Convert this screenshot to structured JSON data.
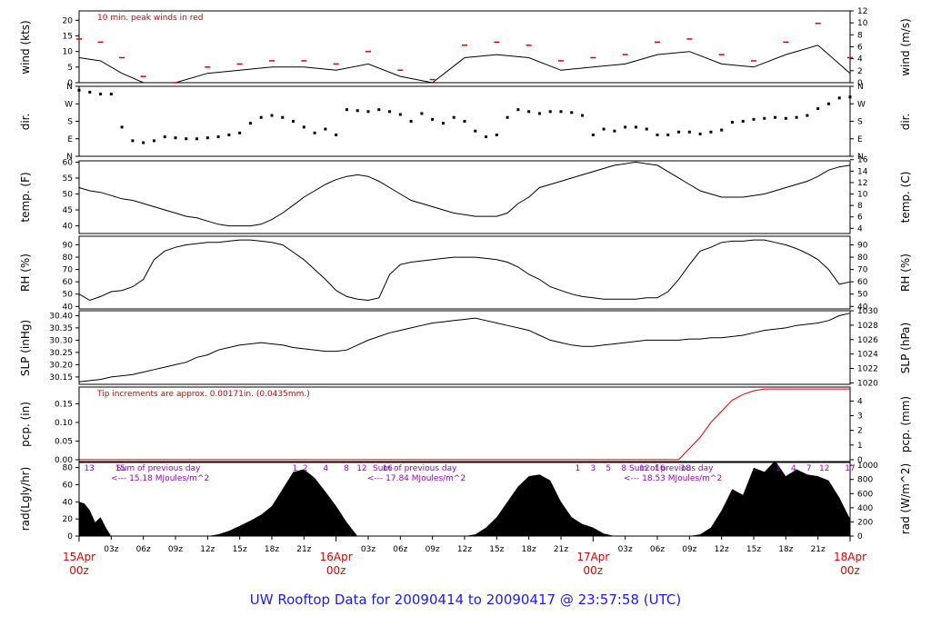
{
  "footer": "UW Rooftop Data for 20090414  to  20090417 @ 23:57:58  (UTC)",
  "colors": {
    "line": "#000000",
    "peak": "#e00000",
    "precip": "#e00000",
    "day_label": "#e00000",
    "rad_note": "#9900cc",
    "footer": "#1a1aff"
  },
  "x_axis": {
    "hour_ticks": [
      "03z",
      "06z",
      "09z",
      "12z",
      "15z",
      "18z",
      "21z",
      "03z",
      "06z",
      "09z",
      "12z",
      "15z",
      "18z",
      "21z",
      "03z",
      "06z",
      "09z",
      "12z",
      "15z",
      "18z",
      "21z"
    ],
    "day_labels": [
      {
        "day": "15Apr",
        "time": "00z"
      },
      {
        "day": "16Apr",
        "time": "00z"
      },
      {
        "day": "17Apr",
        "time": "00z"
      },
      {
        "day": "18Apr",
        "time": "00z"
      }
    ]
  },
  "chart_data": [
    {
      "type": "line",
      "ylabel": "wind (kts)",
      "ylabel_right": "wind (m/s)",
      "ylim": [
        0,
        23
      ],
      "yticks": [
        0,
        5,
        10,
        15,
        20
      ],
      "right_ylim": [
        0,
        12
      ],
      "right_yticks": [
        0,
        2,
        4,
        6,
        8,
        10,
        12
      ],
      "annotation": "10 min. peak winds in red",
      "x": [
        0,
        2,
        4,
        6,
        9,
        12,
        15,
        18,
        21,
        24,
        27,
        30,
        33,
        36,
        39,
        42,
        45,
        48,
        51,
        54,
        57,
        60,
        63,
        66,
        69,
        72
      ],
      "series": [
        {
          "values": [
            8,
            7,
            3,
            0,
            0,
            3,
            4,
            5,
            5,
            4,
            6,
            2,
            0,
            8,
            9,
            8,
            4,
            5,
            6,
            9,
            10,
            6,
            5,
            9,
            12,
            3
          ]
        },
        {
          "values": [
            14,
            13,
            8,
            2,
            0,
            5,
            6,
            7,
            7,
            6,
            10,
            4,
            1,
            12,
            13,
            12,
            7,
            8,
            9,
            13,
            14,
            9,
            7,
            13,
            19,
            8
          ]
        }
      ]
    },
    {
      "type": "scatter",
      "ylabel": "dir.",
      "ylabel_right": "dir.",
      "yticks": [
        "N",
        "E",
        "S",
        "W",
        "N"
      ],
      "x": [
        0,
        1,
        2,
        3,
        4,
        5,
        6,
        7,
        8,
        9,
        10,
        11,
        12,
        13,
        14,
        15,
        16,
        17,
        18,
        19,
        20,
        21,
        22,
        23,
        24,
        25,
        26,
        27,
        28,
        29,
        30,
        31,
        32,
        33,
        34,
        35,
        36,
        37,
        38,
        39,
        40,
        41,
        42,
        43,
        44,
        45,
        46,
        47,
        48,
        49,
        50,
        51,
        52,
        53,
        54,
        55,
        56,
        57,
        58,
        59,
        60,
        61,
        62,
        63,
        64,
        65,
        66,
        67,
        68,
        69,
        70,
        71,
        72
      ],
      "values": [
        340,
        330,
        320,
        320,
        150,
        80,
        70,
        80,
        100,
        95,
        90,
        90,
        95,
        100,
        110,
        120,
        170,
        200,
        210,
        200,
        180,
        150,
        120,
        140,
        110,
        240,
        235,
        230,
        240,
        230,
        215,
        180,
        220,
        190,
        170,
        200,
        180,
        130,
        100,
        110,
        200,
        240,
        230,
        220,
        230,
        230,
        225,
        210,
        110,
        140,
        130,
        150,
        150,
        140,
        110,
        110,
        125,
        125,
        115,
        125,
        135,
        175,
        180,
        190,
        195,
        200,
        195,
        200,
        210,
        245,
        270,
        300,
        305
      ]
    },
    {
      "type": "line",
      "ylabel": "temp. (F)",
      "ylabel_right": "temp. (C)",
      "ylim": [
        37.6,
        60.4
      ],
      "yticks": [
        40,
        45,
        50,
        55,
        60
      ],
      "right_ylim": [
        3.1,
        15.8
      ],
      "right_yticks": [
        4,
        6,
        8,
        10,
        12,
        14,
        16
      ],
      "x": [
        0,
        1,
        2,
        3,
        4,
        5,
        6,
        7,
        8,
        9,
        10,
        11,
        12,
        13,
        14,
        15,
        16,
        17,
        18,
        19,
        20,
        21,
        22,
        23,
        24,
        25,
        26,
        27,
        28,
        29,
        30,
        31,
        32,
        33,
        34,
        35,
        36,
        37,
        38,
        39,
        40,
        41,
        42,
        43,
        44,
        45,
        46,
        47,
        48,
        49,
        50,
        51,
        52,
        53,
        54,
        55,
        56,
        57,
        58,
        59,
        60,
        61,
        62,
        63,
        64,
        65,
        66,
        67,
        68,
        69,
        70,
        71,
        72
      ],
      "values": [
        52,
        51,
        50.5,
        49.5,
        48.5,
        48,
        47,
        46,
        45,
        44,
        43,
        42.5,
        41.5,
        40.5,
        40,
        40,
        40,
        40.5,
        42,
        44,
        46.5,
        49,
        51,
        53,
        54.5,
        55.5,
        56,
        55.5,
        54,
        52,
        50,
        48,
        47,
        46,
        45,
        44,
        43.5,
        43,
        43,
        43,
        44,
        47,
        49,
        52,
        53,
        54,
        55,
        56,
        57,
        58,
        59,
        59.5,
        60,
        59.5,
        59,
        57,
        55,
        53,
        51,
        50,
        49,
        49,
        49,
        49.5,
        50,
        51,
        52,
        53,
        54,
        55.5,
        57.5,
        58.5,
        59
      ]
    },
    {
      "type": "line",
      "ylabel": "RH (%)",
      "ylabel_right": "RH (%)",
      "ylim": [
        38,
        97
      ],
      "yticks": [
        40,
        50,
        60,
        70,
        80,
        90
      ],
      "right_ylim": [
        38,
        97
      ],
      "right_yticks": [
        40,
        50,
        60,
        70,
        80,
        90
      ],
      "x": [
        0,
        1,
        2,
        3,
        4,
        5,
        6,
        7,
        8,
        9,
        10,
        11,
        12,
        13,
        14,
        15,
        16,
        17,
        18,
        19,
        20,
        21,
        22,
        23,
        24,
        25,
        26,
        27,
        28,
        29,
        30,
        31,
        32,
        33,
        34,
        35,
        36,
        37,
        38,
        39,
        40,
        41,
        42,
        43,
        44,
        45,
        46,
        47,
        48,
        49,
        50,
        51,
        52,
        53,
        54,
        55,
        56,
        57,
        58,
        59,
        60,
        61,
        62,
        63,
        64,
        65,
        66,
        67,
        68,
        69,
        70,
        71,
        72
      ],
      "values": [
        50,
        45,
        48,
        52,
        53,
        56,
        62,
        78,
        85,
        88,
        90,
        91,
        92,
        92,
        93,
        94,
        94,
        93,
        92,
        90,
        84,
        78,
        70,
        62,
        53,
        48,
        46,
        45,
        47,
        66,
        74,
        76,
        77,
        78,
        79,
        80,
        80,
        80,
        79,
        78,
        76,
        72,
        66,
        62,
        56,
        53,
        50,
        48,
        47,
        46,
        46,
        46,
        46,
        47,
        47,
        52,
        62,
        74,
        85,
        88,
        92,
        93,
        93,
        94,
        94,
        92,
        90,
        87,
        83,
        78,
        70,
        58,
        60
      ]
    },
    {
      "type": "line",
      "ylabel": "SLP (inHg)",
      "ylabel_right": "SLP (hPa)",
      "ylim": [
        30.12,
        30.42
      ],
      "yticks": [
        30.15,
        30.2,
        30.25,
        30.3,
        30.35,
        30.4
      ],
      "right_ylim": [
        1019.8,
        1030.0
      ],
      "right_yticks": [
        1020,
        1022,
        1024,
        1026,
        1028,
        1030
      ],
      "x": [
        0,
        1,
        2,
        3,
        4,
        5,
        6,
        7,
        8,
        9,
        10,
        11,
        12,
        13,
        14,
        15,
        16,
        17,
        18,
        19,
        20,
        21,
        22,
        23,
        24,
        25,
        26,
        27,
        28,
        29,
        30,
        31,
        32,
        33,
        34,
        35,
        36,
        37,
        38,
        39,
        40,
        41,
        42,
        43,
        44,
        45,
        46,
        47,
        48,
        49,
        50,
        51,
        52,
        53,
        54,
        55,
        56,
        57,
        58,
        59,
        60,
        61,
        62,
        63,
        64,
        65,
        66,
        67,
        68,
        69,
        70,
        71,
        72
      ],
      "values": [
        30.13,
        30.135,
        30.14,
        30.15,
        30.155,
        30.16,
        30.17,
        30.18,
        30.19,
        30.2,
        30.21,
        30.23,
        30.24,
        30.26,
        30.27,
        30.28,
        30.285,
        30.29,
        30.285,
        30.28,
        30.27,
        30.265,
        30.26,
        30.255,
        30.255,
        30.26,
        30.28,
        30.3,
        30.315,
        30.33,
        30.34,
        30.35,
        30.36,
        30.37,
        30.375,
        30.38,
        30.385,
        30.39,
        30.38,
        30.37,
        30.36,
        30.35,
        30.34,
        30.32,
        30.3,
        30.29,
        30.28,
        30.275,
        30.275,
        30.28,
        30.285,
        30.29,
        30.295,
        30.3,
        30.3,
        30.3,
        30.3,
        30.305,
        30.305,
        30.31,
        30.31,
        30.315,
        30.32,
        30.33,
        30.34,
        30.345,
        30.35,
        30.36,
        30.365,
        30.37,
        30.38,
        30.4,
        30.41
      ]
    },
    {
      "type": "line",
      "ylabel": "pcp. (in)",
      "ylabel_right": "pcp. (mm)",
      "ylim": [
        -0.005,
        0.195
      ],
      "yticks": [
        0.0,
        0.05,
        0.1,
        0.15
      ],
      "right_ylim": [
        -0.127,
        4.953
      ],
      "right_yticks": [
        0,
        1,
        2,
        3,
        4
      ],
      "annotation": "Tip increments are approx. 0.00171in. (0.0435mm.)",
      "x": [
        0,
        56,
        57,
        58,
        59,
        60,
        61,
        62,
        63,
        64,
        65,
        72
      ],
      "values": [
        0,
        0,
        0.03,
        0.06,
        0.1,
        0.13,
        0.16,
        0.175,
        0.185,
        0.19,
        0.19,
        0.19
      ]
    },
    {
      "type": "area",
      "ylabel": "rad(Lgly/hr)",
      "ylabel_right": "rad (W/m^2)",
      "ylim": [
        0,
        86
      ],
      "yticks": [
        0,
        20,
        40,
        60,
        80
      ],
      "right_ylim": [
        0,
        1040
      ],
      "right_yticks": [
        0,
        200,
        400,
        600,
        800,
        1000
      ],
      "x": [
        0,
        0.5,
        1,
        1.5,
        2,
        2.5,
        3,
        4,
        12,
        13,
        14,
        15,
        16,
        17,
        18,
        19,
        20,
        21,
        22,
        23,
        24,
        25,
        26,
        36,
        37,
        38,
        39,
        40,
        41,
        42,
        43,
        44,
        45,
        46,
        47,
        48,
        49,
        50,
        56,
        57,
        58,
        59,
        60,
        61,
        62,
        63,
        64,
        65,
        66,
        67,
        68,
        69,
        70,
        71,
        72
      ],
      "values": [
        40,
        38,
        30,
        16,
        22,
        10,
        0,
        0,
        0,
        2,
        6,
        12,
        18,
        25,
        35,
        55,
        75,
        78,
        68,
        52,
        35,
        16,
        0,
        0,
        2,
        10,
        22,
        40,
        58,
        70,
        72,
        65,
        40,
        22,
        14,
        10,
        3,
        0,
        0,
        0,
        2,
        10,
        30,
        55,
        48,
        80,
        75,
        88,
        70,
        78,
        72,
        70,
        65,
        45,
        20
      ],
      "hour_markers": [
        "13",
        "15",
        "1",
        "2",
        "4",
        "8",
        "12",
        "16",
        "1",
        "3",
        "5",
        "8",
        "12",
        "16",
        "18",
        "1",
        "4",
        "7",
        "12",
        "17"
      ],
      "notes": [
        {
          "line1": "Sum of previous day",
          "line2": "<--- 15.18 MJoules/m^2"
        },
        {
          "line1": "Sum of previous day",
          "line2": "<--- 17.84 MJoules/m^2"
        },
        {
          "line1": "Sum of previous day",
          "line2": "<--- 18.53 MJoules/m^2"
        }
      ]
    }
  ]
}
